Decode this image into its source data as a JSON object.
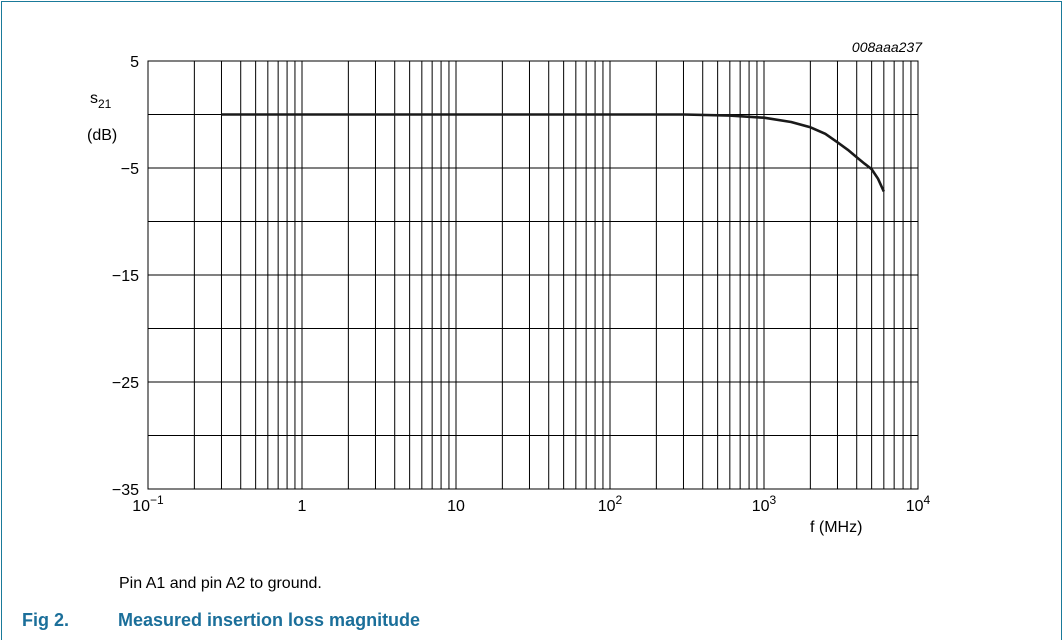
{
  "figure": {
    "label": "Fig 2.",
    "title": "Measured insertion loss magnitude",
    "note": "Pin A1 and pin A2 to ground."
  },
  "chart_data": {
    "type": "line",
    "code": "008aaa237",
    "ylabel_main": "s",
    "ylabel_sub": "21",
    "ylabel_unit": "(dB)",
    "xlabel": "f (MHz)",
    "xscale": "log",
    "xlim": [
      0.1,
      10000
    ],
    "ylim": [
      -35,
      5
    ],
    "grid": true,
    "yticks": [
      {
        "value": 5,
        "label": "5"
      },
      {
        "value": -5,
        "label": "−5"
      },
      {
        "value": -15,
        "label": "−15"
      },
      {
        "value": -25,
        "label": "−25"
      },
      {
        "value": -35,
        "label": "−35"
      }
    ],
    "ygrid_step": 5,
    "xticks": [
      {
        "value": 0.1,
        "base": "10",
        "exp": "−1"
      },
      {
        "value": 1,
        "base": "1",
        "exp": ""
      },
      {
        "value": 10,
        "base": "10",
        "exp": ""
      },
      {
        "value": 100,
        "base": "10",
        "exp": "2"
      },
      {
        "value": 1000,
        "base": "10",
        "exp": "3"
      },
      {
        "value": 10000,
        "base": "10",
        "exp": "4"
      }
    ],
    "series": [
      {
        "x": [
          0.3,
          1,
          10,
          100,
          300,
          600,
          1000,
          1500,
          2000,
          2500,
          3000,
          3500,
          4000,
          4500,
          5000,
          5500,
          6000
        ],
        "y": [
          0,
          0,
          0,
          0,
          0,
          -0.1,
          -0.3,
          -0.7,
          -1.2,
          -1.8,
          -2.6,
          -3.3,
          -4.0,
          -4.6,
          -5.1,
          -6.0,
          -7.2
        ]
      }
    ]
  }
}
